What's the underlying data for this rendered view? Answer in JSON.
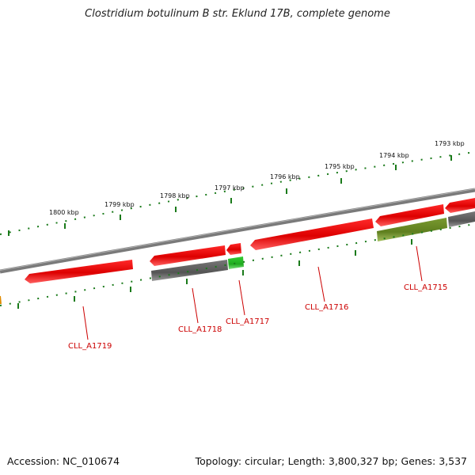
{
  "title": "Clostridium botulinum B str. Eklund 17B, complete genome",
  "footer": {
    "accession": "Accession: NC_010674",
    "topology": "Topology: circular; Length: 3,800,327 bp; Genes: 3,537"
  },
  "scale_labels": [
    "1800 kbp",
    "1799 kbp",
    "1798 kbp",
    "1797 kbp",
    "1796 kbp",
    "1795 kbp",
    "1794 kbp",
    "1793 kbp"
  ],
  "gene_labels": [
    "CLL_A1719",
    "CLL_A1718",
    "CLL_A1717",
    "CLL_A1716",
    "CLL_A1715"
  ],
  "colors": {
    "cds": "#ee0000",
    "gene_gray": "#606060",
    "gene_green": "#22bb22",
    "gene_olive": "#6b8e23",
    "backbone": "#808080",
    "tick": "#1a7a1a",
    "label": "#cc0000"
  }
}
